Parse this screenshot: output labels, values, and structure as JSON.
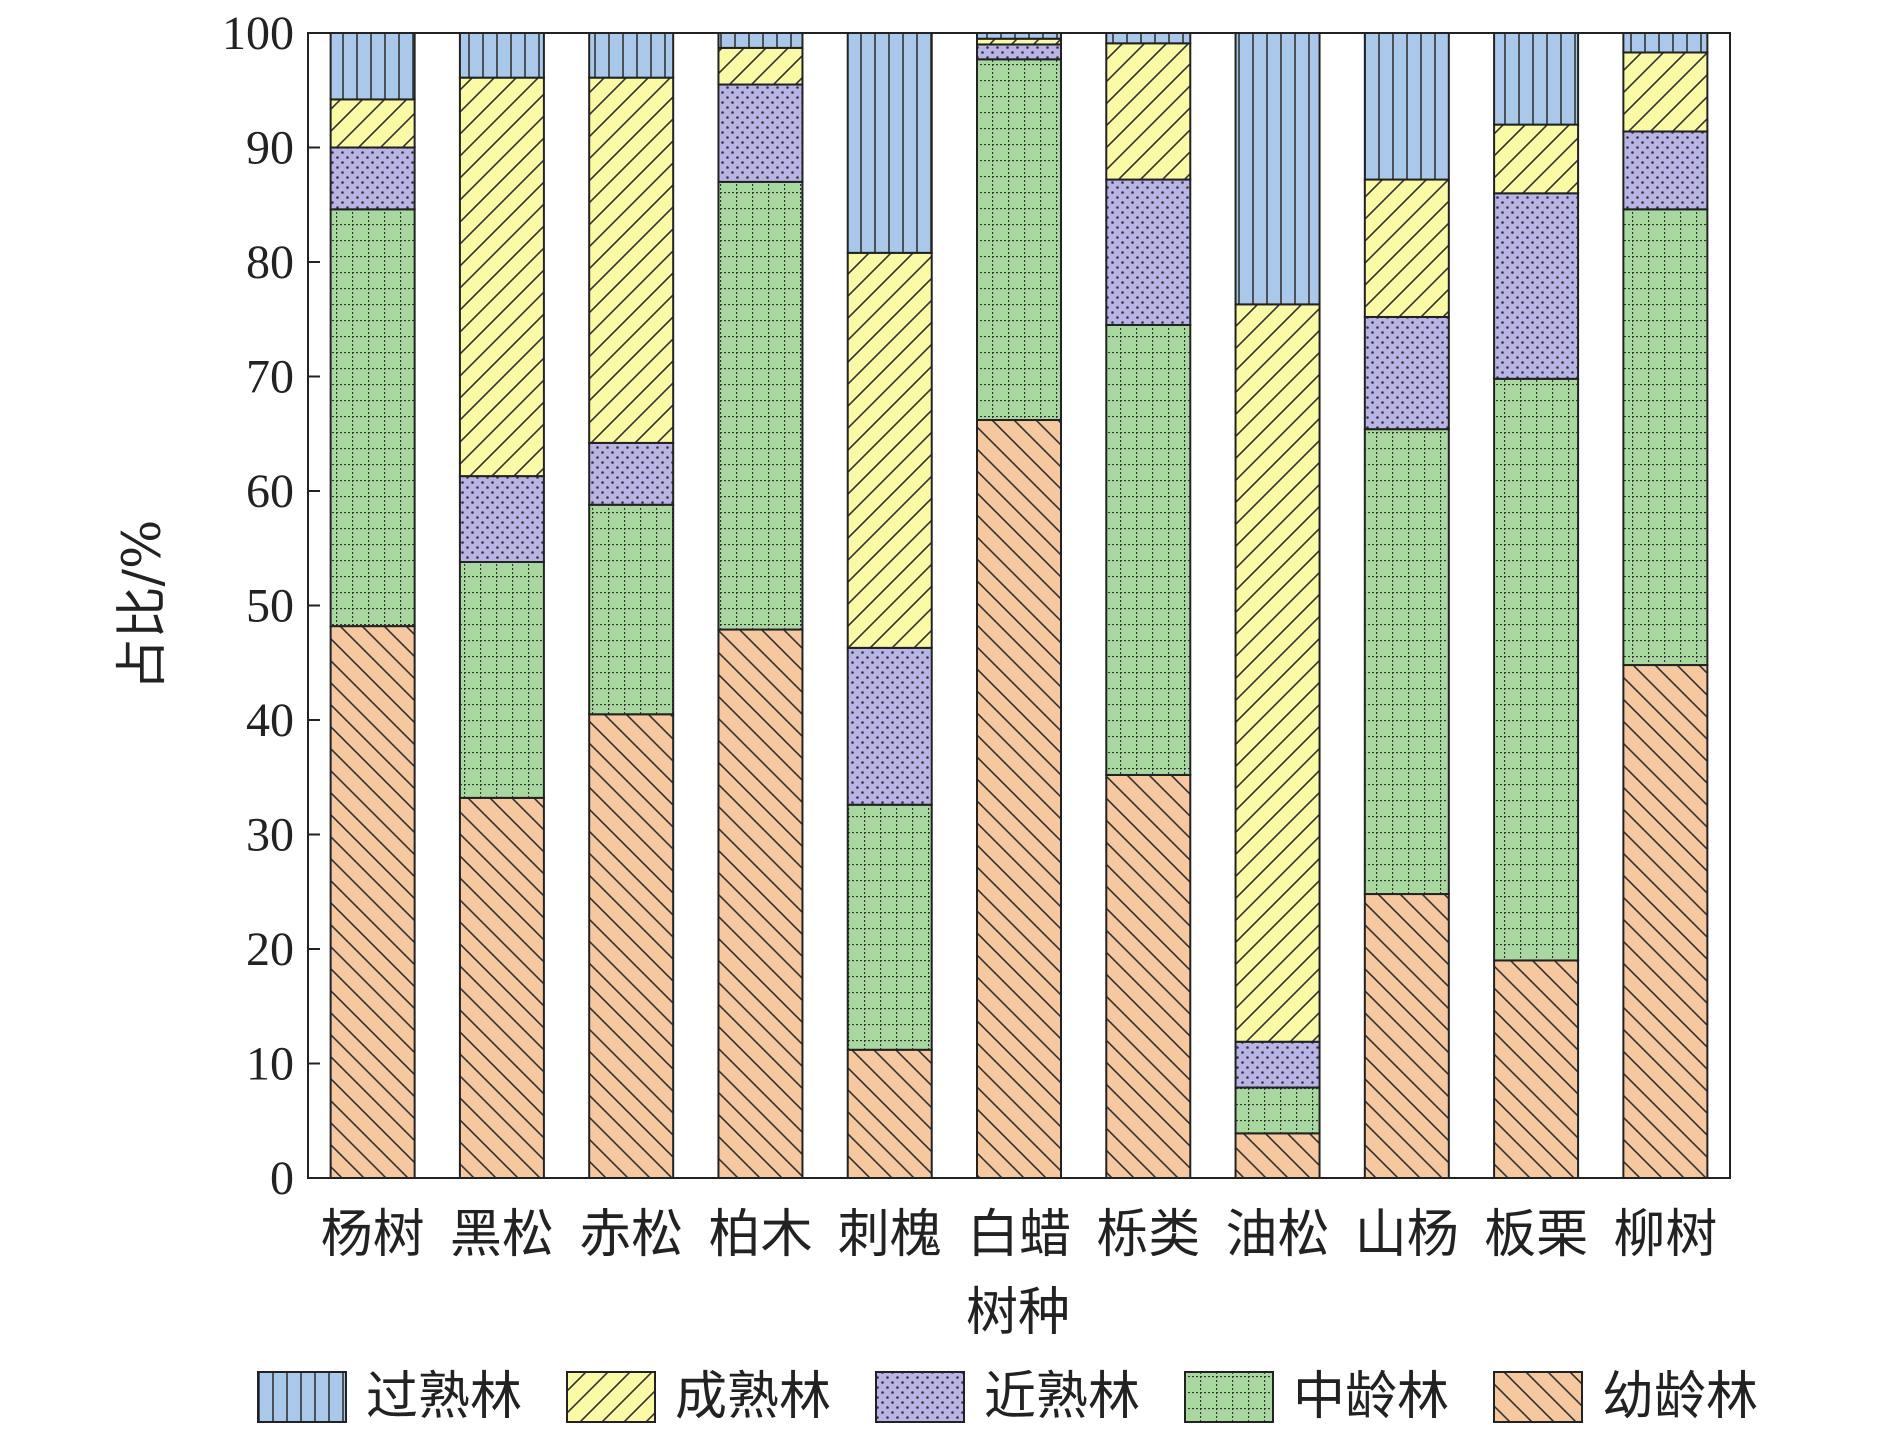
{
  "chart_data": {
    "type": "bar",
    "stacked": true,
    "xlabel": "树种",
    "ylabel": "占比/%",
    "ylim": [
      0,
      100
    ],
    "yticks": [
      "0",
      "10",
      "20",
      "30",
      "40",
      "50",
      "60",
      "70",
      "80",
      "90",
      "100"
    ],
    "grid": false,
    "legend_position": "bottom",
    "categories": [
      "杨树",
      "黑松",
      "赤松",
      "柏木",
      "刺槐",
      "白蜡",
      "栎类",
      "油松",
      "山杨",
      "板栗",
      "柳树"
    ],
    "series": [
      {
        "name": "幼龄林",
        "color": "#f5c8a0",
        "pattern": "backslash",
        "values": [
          48.2,
          33.2,
          40.5,
          47.9,
          11.2,
          66.2,
          35.2,
          3.9,
          24.8,
          19.0,
          44.8
        ]
      },
      {
        "name": "中龄林",
        "color": "#a8d8a0",
        "pattern": "grid-dots",
        "values": [
          36.4,
          20.6,
          18.3,
          39.1,
          21.4,
          31.5,
          39.3,
          4.0,
          40.6,
          50.8,
          39.8
        ]
      },
      {
        "name": "近熟林",
        "color": "#b8b4e6",
        "pattern": "dots",
        "values": [
          5.4,
          7.5,
          5.4,
          8.5,
          13.7,
          1.3,
          12.7,
          4.0,
          9.8,
          16.2,
          6.8
        ]
      },
      {
        "name": "成熟林",
        "color": "#fafaa6",
        "pattern": "slash",
        "values": [
          4.2,
          34.8,
          31.9,
          3.2,
          34.5,
          0.5,
          11.9,
          64.4,
          12.0,
          6.0,
          6.9
        ]
      },
      {
        "name": "过熟林",
        "color": "#a9c8ea",
        "pattern": "vertical",
        "values": [
          5.8,
          3.9,
          3.9,
          1.3,
          19.2,
          0.5,
          0.9,
          23.7,
          12.8,
          8.0,
          1.7
        ]
      }
    ],
    "legend_order": [
      "过熟林",
      "成熟林",
      "近熟林",
      "中龄林",
      "幼龄林"
    ]
  }
}
